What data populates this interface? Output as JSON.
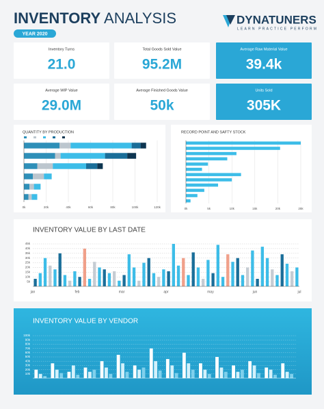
{
  "header": {
    "title_bold": "INVENTORY",
    "title_light": "ANALYSIS",
    "year": "YEAR 2020",
    "logo": "DYNATUNERS",
    "tagline": "LEARN PRACTICE PERFORM"
  },
  "kpis": [
    {
      "label": "Inventory Turns",
      "value": "21.0",
      "highlight": false
    },
    {
      "label": "Total Goods Sold Value",
      "value": "95.2M",
      "highlight": false
    },
    {
      "label": "Average Raw Material Value",
      "value": "39.4k",
      "highlight": true
    },
    {
      "label": "Average WIP Value",
      "value": "29.0M",
      "highlight": false
    },
    {
      "label": "Average Finished Goods Value",
      "value": "50k",
      "highlight": false
    },
    {
      "label": "Units Sold",
      "value": "305K",
      "highlight": true
    }
  ],
  "chart_data": [
    {
      "type": "bar",
      "horizontal": true,
      "stacked": true,
      "title": "QUANTITY BY PRODUCTION",
      "series": [
        {
          "color": "#2e8fb8",
          "values": [
            32,
            28,
            12,
            8,
            5,
            4
          ]
        },
        {
          "color": "#bcc6ce",
          "values": [
            10,
            5,
            14,
            10,
            4,
            3
          ]
        },
        {
          "color": "#3dbde8",
          "values": [
            55,
            40,
            30,
            7,
            6,
            5
          ]
        },
        {
          "color": "#1a6e99",
          "values": [
            8,
            20,
            10,
            0,
            0,
            0
          ]
        },
        {
          "color": "#0d3550",
          "values": [
            5,
            8,
            5,
            0,
            0,
            0
          ]
        }
      ],
      "xlim": [
        0,
        120
      ],
      "xticks": [
        {
          "value": 0,
          "label": "0k"
        },
        {
          "value": 20,
          "label": "20k"
        },
        {
          "value": 40,
          "label": "40k"
        },
        {
          "value": 60,
          "label": "60k"
        },
        {
          "value": 80,
          "label": "80k"
        },
        {
          "value": 100,
          "label": "100k"
        },
        {
          "value": 120,
          "label": "120k"
        }
      ],
      "grid": true
    },
    {
      "type": "bar",
      "horizontal": true,
      "stacked": false,
      "title": "RECORD POINT AND SAFTY STOCK",
      "color": "#3dbde8",
      "values": [
        25,
        20.5,
        11,
        9,
        4.8,
        3.5,
        12,
        10,
        7,
        4,
        2.5,
        1
      ],
      "xlim": [
        0,
        25
      ],
      "xticks": [
        {
          "value": 0,
          "label": "0k"
        },
        {
          "value": 5,
          "label": "5k"
        },
        {
          "value": 10,
          "label": "10k"
        },
        {
          "value": 15,
          "label": "15k"
        },
        {
          "value": 20,
          "label": "20k"
        },
        {
          "value": 25,
          "label": "25k"
        }
      ],
      "grid": true
    },
    {
      "type": "bar",
      "horizontal": false,
      "stacked": false,
      "title": "INVENTORY VALUE BY LAST DATE",
      "values": [
        8,
        14,
        30,
        22,
        18,
        35,
        12,
        6,
        16,
        10,
        40,
        8,
        26,
        20,
        18,
        14,
        16,
        6,
        12,
        34,
        20,
        6,
        25,
        30,
        14,
        10,
        18,
        16,
        45,
        22,
        30,
        12,
        36,
        20,
        8,
        28,
        14,
        44,
        10,
        34,
        26,
        30,
        12,
        20,
        38,
        8,
        42,
        30,
        18,
        12,
        34,
        24,
        16,
        20
      ],
      "colors": [
        "#1a6e99",
        "#3dbde8",
        "#3dbde8",
        "#c5ccd3",
        "#3dbde8",
        "#1a6e99",
        "#3dbde8",
        "#c5ccd3",
        "#3dbde8",
        "#1a6e99",
        "#f0a08a",
        "#3dbde8",
        "#c5ccd3",
        "#3dbde8",
        "#1a6e99",
        "#3dbde8",
        "#c5ccd3",
        "#3dbde8",
        "#1a6e99",
        "#3dbde8",
        "#3dbde8",
        "#c5ccd3",
        "#3dbde8",
        "#1a6e99",
        "#3dbde8",
        "#c5ccd3",
        "#3dbde8",
        "#1a6e99",
        "#3dbde8",
        "#3dbde8",
        "#f0a08a",
        "#3dbde8",
        "#1a6e99",
        "#3dbde8",
        "#c5ccd3",
        "#3dbde8",
        "#1a6e99",
        "#3dbde8",
        "#3dbde8",
        "#f0a08a",
        "#3dbde8",
        "#1a6e99",
        "#3dbde8",
        "#c5ccd3",
        "#3dbde8",
        "#1a6e99",
        "#3dbde8",
        "#3dbde8",
        "#c5ccd3",
        "#3dbde8",
        "#1a6e99",
        "#3dbde8",
        "#c5ccd3",
        "#3dbde8"
      ],
      "xlabels": [
        "jan",
        "feb",
        "mar",
        "apr",
        "may",
        "jun",
        "jul"
      ],
      "ylim": [
        0,
        45
      ],
      "yticks": [
        {
          "value": 5,
          "label": "5k"
        },
        {
          "value": 10,
          "label": "10k"
        },
        {
          "value": 15,
          "label": "15k"
        },
        {
          "value": 20,
          "label": "20k"
        },
        {
          "value": 25,
          "label": "25k"
        },
        {
          "value": 30,
          "label": "30k"
        },
        {
          "value": 35,
          "label": "35k"
        },
        {
          "value": 40,
          "label": "40k"
        },
        {
          "value": 45,
          "label": "45k"
        }
      ],
      "grid": true
    },
    {
      "type": "bar",
      "horizontal": false,
      "stacked": false,
      "title": "INVENTORY VALUE BY VENDOR",
      "series": [
        {
          "color": "#ffffff",
          "values": [
            20,
            35,
            15,
            25,
            40,
            55,
            30,
            70,
            45,
            60,
            35,
            50,
            30,
            40,
            25,
            35
          ]
        },
        {
          "color": "#d3f1fb",
          "values": [
            10,
            20,
            30,
            15,
            25,
            35,
            20,
            40,
            30,
            35,
            20,
            25,
            15,
            30,
            20,
            15
          ]
        },
        {
          "color": "#7fd0ec",
          "values": [
            5,
            12,
            8,
            20,
            10,
            15,
            25,
            18,
            12,
            20,
            10,
            15,
            20,
            12,
            8,
            10
          ]
        }
      ],
      "ylim": [
        0,
        100
      ],
      "yticks": [
        {
          "value": 10,
          "label": "10k"
        },
        {
          "value": 20,
          "label": "20k"
        },
        {
          "value": 30,
          "label": "30k"
        },
        {
          "value": 40,
          "label": "40k"
        },
        {
          "value": 50,
          "label": "50k"
        },
        {
          "value": 60,
          "label": "60k"
        },
        {
          "value": 70,
          "label": "70k"
        },
        {
          "value": 80,
          "label": "80k"
        },
        {
          "value": 90,
          "label": "90k"
        },
        {
          "value": 100,
          "label": "100k"
        }
      ],
      "grid": true
    }
  ]
}
